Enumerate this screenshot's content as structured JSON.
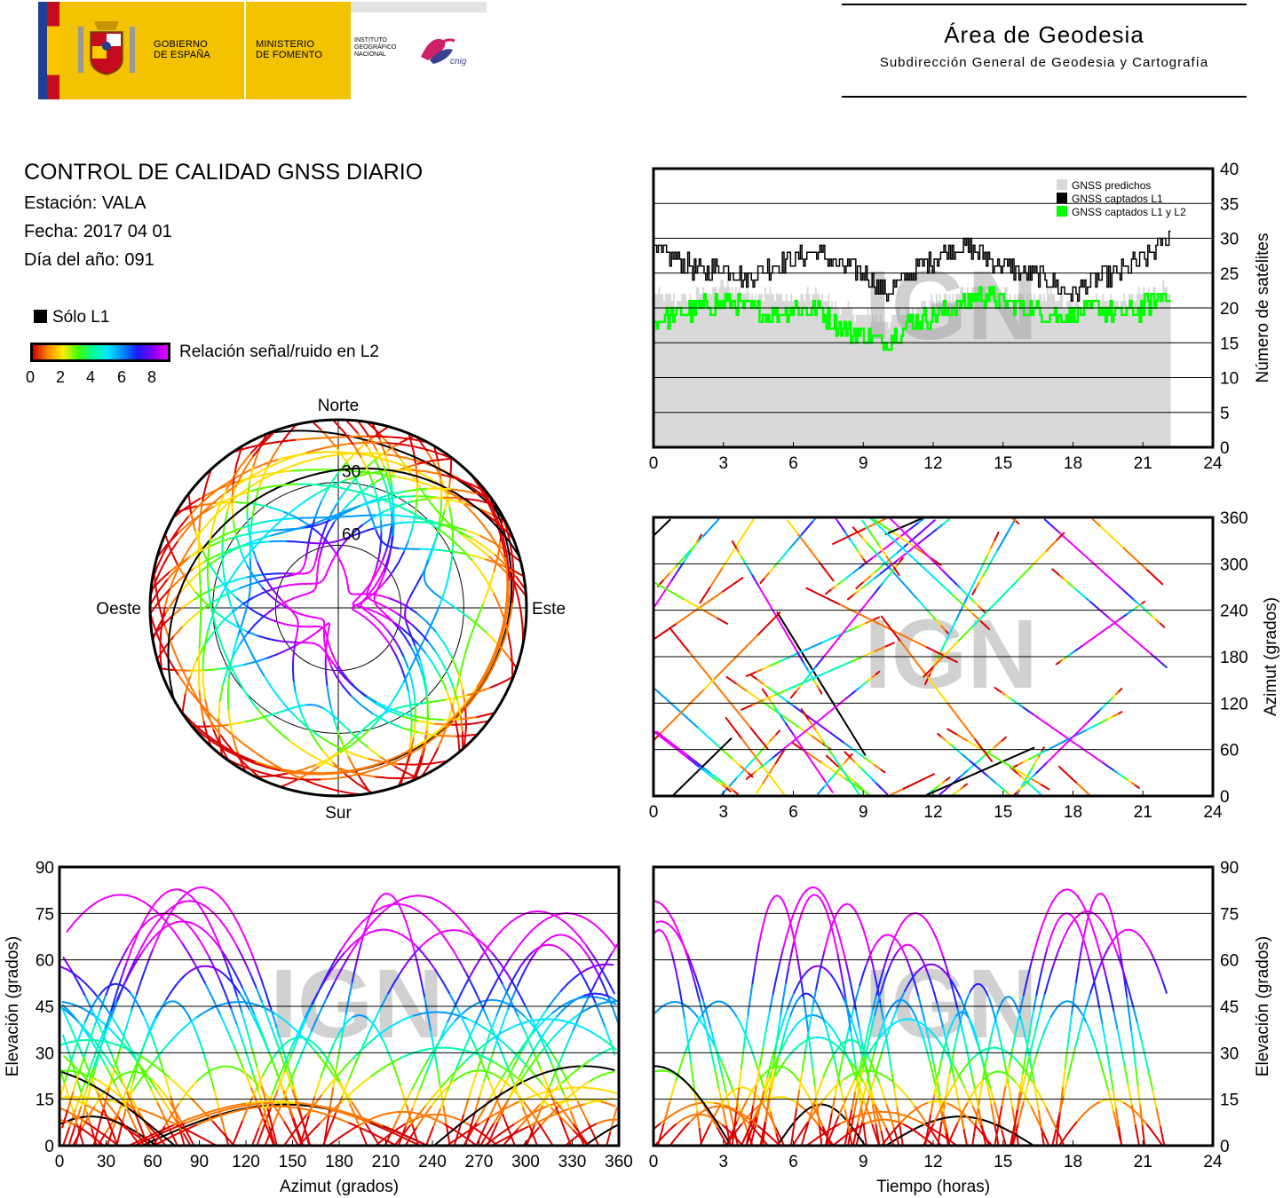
{
  "header": {
    "gobierno": "GOBIERNO\nDE ESPAÑA",
    "ministerio": "MINISTERIO\nDE FOMENTO",
    "instituto": "INSTITUTO\nGEOGRÁFICO\nNACIONAL",
    "cnig": "cnig",
    "area_title": "Área de Geodesia",
    "area_subtitle": "Subdirección General de Geodesia y Cartografía"
  },
  "info": {
    "title": "CONTROL DE CALIDAD GNSS DIARIO",
    "station": "Estación: VALA",
    "date": "Fecha: 2017 04 01",
    "doy": "Día del año: 091"
  },
  "legend": {
    "l1_only": "Sólo L1",
    "snr_label": "Relación señal/ruido en L2",
    "snr_ticks": [
      "0",
      "2",
      "4",
      "6",
      "8"
    ]
  },
  "watermark": "IGN",
  "colors": {
    "predicted": "#d9d9d9",
    "l1": "#000000",
    "l1l2": "#00ff00",
    "grid": "#000000"
  },
  "chart_data": [
    {
      "id": "satellite-count",
      "type": "area",
      "x_ticks": [
        "0",
        "3",
        "6",
        "9",
        "12",
        "15",
        "18",
        "21",
        "24"
      ],
      "y_ticks": [
        "0",
        "5",
        "10",
        "15",
        "20",
        "25",
        "30",
        "35",
        "40"
      ],
      "xlim": [
        0,
        24
      ],
      "ylim": [
        0,
        40
      ],
      "ylabel": "Número de satélites",
      "legend_position": "top-right",
      "series": [
        {
          "name": "GNSS predichos",
          "color": "#d9d9d9",
          "x": [
            0,
            1,
            2,
            3,
            4,
            5,
            6,
            7,
            8,
            9,
            10,
            11,
            12,
            13,
            14,
            15,
            16,
            17,
            18,
            19,
            20,
            21,
            22
          ],
          "values": [
            22,
            21,
            22,
            23,
            22,
            22,
            21,
            22,
            20,
            19,
            18,
            20,
            21,
            22,
            23,
            22,
            21,
            22,
            20,
            21,
            21,
            22,
            23
          ]
        },
        {
          "name": "GNSS captados L1",
          "color": "#000000",
          "x": [
            0,
            1,
            2,
            3,
            4,
            5,
            6,
            7,
            8,
            9,
            10,
            11,
            12,
            13,
            14,
            15,
            16,
            17,
            18,
            19,
            20,
            21,
            22
          ],
          "values": [
            28,
            27,
            25,
            26,
            24,
            26,
            27,
            28,
            26,
            25,
            22,
            25,
            27,
            29,
            28,
            26,
            25,
            24,
            22,
            24,
            25,
            27,
            30
          ]
        },
        {
          "name": "GNSS captados L1 y L2",
          "color": "#00ff00",
          "x": [
            0,
            1,
            2,
            3,
            4,
            5,
            6,
            7,
            8,
            9,
            10,
            11,
            12,
            13,
            14,
            15,
            16,
            17,
            18,
            19,
            20,
            21,
            22
          ],
          "values": [
            18,
            19,
            20,
            21,
            20,
            19,
            20,
            20,
            17,
            16,
            15,
            18,
            19,
            20,
            22,
            21,
            20,
            19,
            19,
            20,
            19,
            20,
            22
          ]
        }
      ]
    },
    {
      "id": "azimuth-time",
      "type": "scatter",
      "x_ticks": [
        "0",
        "3",
        "6",
        "9",
        "12",
        "15",
        "18",
        "21",
        "24"
      ],
      "y_ticks": [
        "0",
        "60",
        "120",
        "180",
        "240",
        "300",
        "360"
      ],
      "xlim": [
        0,
        24
      ],
      "ylim": [
        0,
        360
      ],
      "ylabel": "Azimut (grados)"
    },
    {
      "id": "skyplot",
      "type": "scatter",
      "directions": {
        "north": "Norte",
        "south": "Sur",
        "east": "Este",
        "west": "Oeste"
      },
      "elevation_rings": [
        "30",
        "60"
      ]
    },
    {
      "id": "elevation-azimuth",
      "type": "scatter",
      "x_ticks": [
        "0",
        "30",
        "60",
        "90",
        "120",
        "150",
        "180",
        "210",
        "240",
        "270",
        "300",
        "330",
        "360"
      ],
      "y_ticks": [
        "0",
        "15",
        "30",
        "45",
        "60",
        "75",
        "90"
      ],
      "xlim": [
        0,
        360
      ],
      "ylim": [
        0,
        90
      ],
      "xlabel": "Azimut (grados)",
      "ylabel": "Elevación (grados)"
    },
    {
      "id": "elevation-time",
      "type": "scatter",
      "x_ticks": [
        "0",
        "3",
        "6",
        "9",
        "12",
        "15",
        "18",
        "21",
        "24"
      ],
      "y_ticks": [
        "0",
        "15",
        "30",
        "45",
        "60",
        "75",
        "90"
      ],
      "xlim": [
        0,
        24
      ],
      "ylim": [
        0,
        90
      ],
      "xlabel": "Tiempo (horas)",
      "ylabel": "Elevación (grados)"
    }
  ]
}
